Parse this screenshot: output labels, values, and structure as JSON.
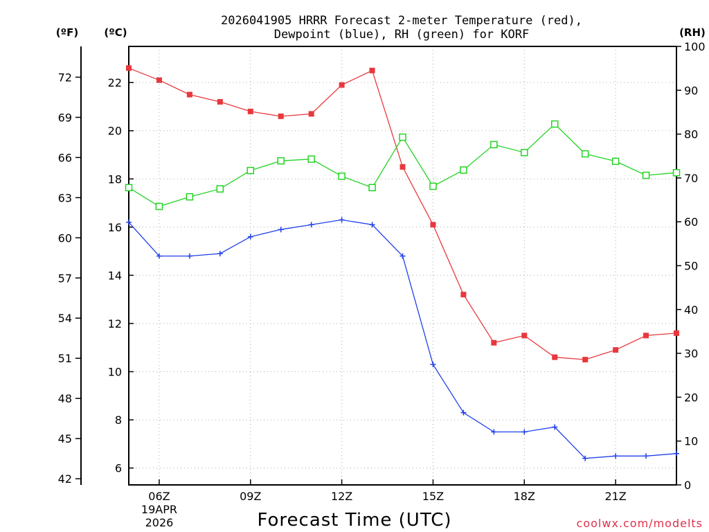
{
  "chart_data": {
    "type": "line",
    "title_line1": "2026041905 HRRR Forecast 2-meter Temperature (red),",
    "title_line2": "Dewpoint (blue), RH (green) for KORF",
    "xlabel": "Forecast Time (UTC)",
    "credit": "coolwx.com/modelts",
    "left_outer_unit": "(ºF)",
    "left_inner_unit": "(ºC)",
    "right_unit": "(RH)",
    "x_hours": [
      5,
      6,
      7,
      8,
      9,
      10,
      11,
      12,
      13,
      14,
      15,
      16,
      17,
      18,
      19,
      20,
      21,
      22,
      23
    ],
    "xlim": [
      5,
      23
    ],
    "x_ticks": [
      {
        "hour": 6,
        "label": "06Z",
        "sub1": "19APR",
        "sub2": "2026"
      },
      {
        "hour": 9,
        "label": "09Z",
        "sub1": "",
        "sub2": ""
      },
      {
        "hour": 12,
        "label": "12Z",
        "sub1": "",
        "sub2": ""
      },
      {
        "hour": 15,
        "label": "15Z",
        "sub1": "",
        "sub2": ""
      },
      {
        "hour": 18,
        "label": "18Z",
        "sub1": "",
        "sub2": ""
      },
      {
        "hour": 21,
        "label": "21Z",
        "sub1": "",
        "sub2": ""
      }
    ],
    "celsius_axis": {
      "min": 5.3,
      "max": 23.5,
      "ticks": [
        6,
        8,
        10,
        12,
        14,
        16,
        18,
        20,
        22
      ]
    },
    "fahrenheit_ticks": [
      42,
      45,
      48,
      51,
      54,
      57,
      60,
      63,
      66,
      69,
      72
    ],
    "rh_axis": {
      "min": 0,
      "max": 100,
      "ticks": [
        0,
        10,
        20,
        30,
        40,
        50,
        60,
        70,
        80,
        90,
        100
      ]
    },
    "series": [
      {
        "name": "Temperature",
        "units": "C",
        "color": "#e8383d",
        "marker": "filled-square",
        "values": [
          22.6,
          22.1,
          21.5,
          21.2,
          20.8,
          20.6,
          20.7,
          21.9,
          22.5,
          18.5,
          16.1,
          13.2,
          11.2,
          11.5,
          10.6,
          10.5,
          10.9,
          11.5,
          11.6
        ]
      },
      {
        "name": "Dewpoint",
        "units": "C",
        "color": "#2040e8",
        "marker": "plus",
        "values": [
          16.2,
          14.8,
          14.8,
          14.9,
          15.6,
          15.9,
          16.1,
          16.3,
          16.1,
          14.8,
          10.3,
          8.3,
          7.5,
          7.5,
          7.7,
          6.4,
          6.5,
          6.5,
          6.6
        ]
      },
      {
        "name": "RH",
        "units": "%",
        "color": "#22d422",
        "marker": "open-square",
        "values": [
          67.8,
          63.5,
          65.7,
          67.5,
          71.7,
          73.9,
          74.3,
          70.4,
          67.8,
          79.3,
          68.1,
          71.8,
          77.6,
          75.8,
          82.3,
          75.5,
          73.8,
          70.6,
          71.2
        ]
      }
    ],
    "grid": true
  }
}
